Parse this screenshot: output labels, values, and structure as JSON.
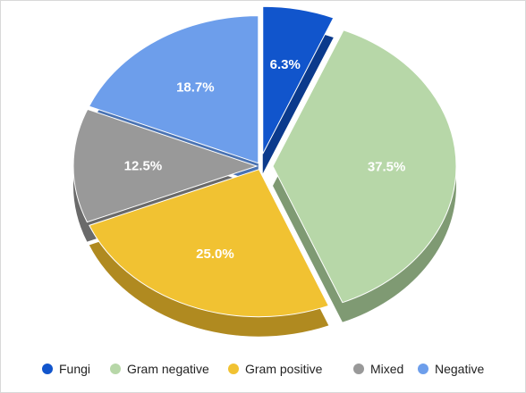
{
  "chart_data": {
    "type": "pie",
    "style": "3d-exploded",
    "legend_position": "bottom",
    "slices": [
      {
        "name": "Fungi",
        "value": 6.3,
        "label": "6.3%",
        "color": "#1155cc",
        "side_color": "#0b3a8c"
      },
      {
        "name": "Gram negative",
        "value": 37.5,
        "label": "37.5%",
        "color": "#b7d7a8",
        "side_color": "#7f9a73"
      },
      {
        "name": "Gram positive",
        "value": 25.0,
        "label": "25.0%",
        "color": "#f1c232",
        "side_color": "#b08a20"
      },
      {
        "name": "Mixed",
        "value": 12.5,
        "label": "12.5%",
        "color": "#999999",
        "side_color": "#6a6a6a"
      },
      {
        "name": "Negative",
        "value": 18.7,
        "label": "18.7%",
        "color": "#6d9eeb",
        "side_color": "#4a73b3"
      }
    ]
  }
}
